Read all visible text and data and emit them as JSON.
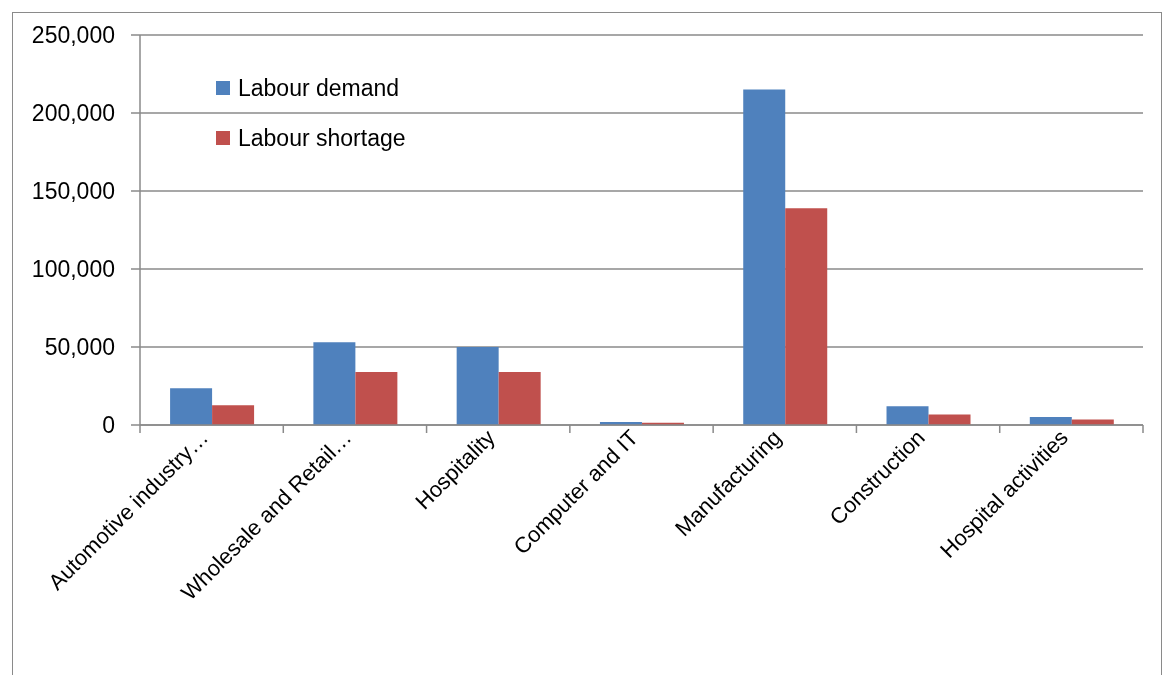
{
  "chart_data": {
    "type": "bar",
    "categories": [
      "Automotive industry…",
      "Wholesale and Retail…",
      "Hospitality",
      "Computer and IT",
      "Manufacturing",
      "Construction",
      "Hospital activities"
    ],
    "series": [
      {
        "name": "Labour demand",
        "color": "#4f81bd",
        "values": [
          23500,
          53000,
          50000,
          2000,
          215000,
          12000,
          5200
        ]
      },
      {
        "name": "Labour shortage",
        "color": "#c0504d",
        "values": [
          12700,
          34000,
          34000,
          1500,
          139000,
          6700,
          3500
        ]
      }
    ],
    "ylim": [
      0,
      250000
    ],
    "yticks": [
      {
        "value": 0,
        "label": "0"
      },
      {
        "value": 50000,
        "label": "50,000"
      },
      {
        "value": 100000,
        "label": "100,000"
      },
      {
        "value": 150000,
        "label": "150,000"
      },
      {
        "value": 200000,
        "label": "200,000"
      },
      {
        "value": 250000,
        "label": "250,000"
      }
    ],
    "grid": "y",
    "legend": "top left"
  }
}
